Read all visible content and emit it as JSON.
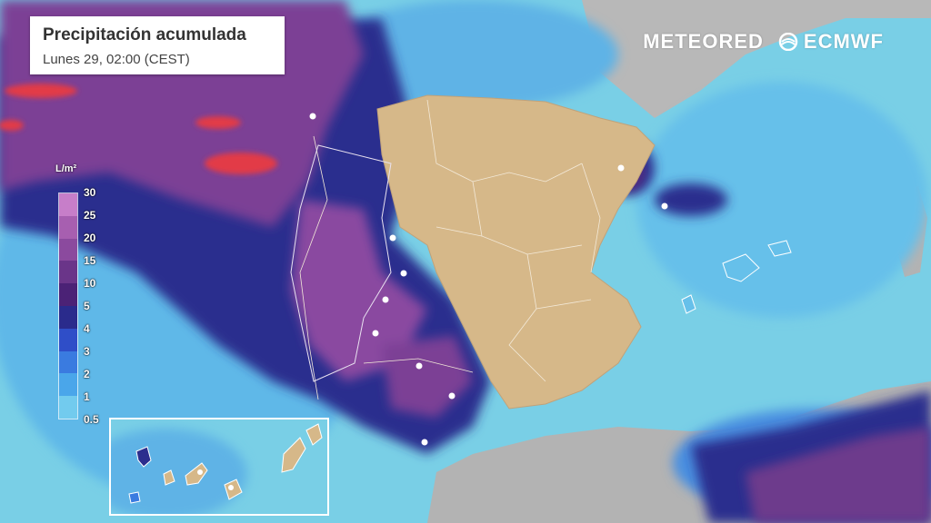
{
  "title": "Precipitación acumulada",
  "subtitle": "Lunes 29, 02:00 (CEST)",
  "brand": {
    "meteored": "METEORED",
    "ecmwf": "ECMWF"
  },
  "legend": {
    "unit": "L/m²",
    "labels": [
      "30",
      "25",
      "20",
      "15",
      "10",
      "5",
      "4",
      "3",
      "2",
      "1",
      "0.5"
    ],
    "colors": [
      "#c77ec9",
      "#a75fb0",
      "#8b4a9e",
      "#6a3589",
      "#4b2276",
      "#2a2b8c",
      "#2f4ec8",
      "#3a7be0",
      "#4aa6ea",
      "#72cbee"
    ]
  },
  "colors": {
    "sea": "#79cfe6",
    "land": "#d7b88a",
    "land_gray": "#b5b5b5",
    "heavy_red": "#e8343f",
    "purple": "#8b4a9e",
    "dark_navy": "#2b2c86"
  }
}
